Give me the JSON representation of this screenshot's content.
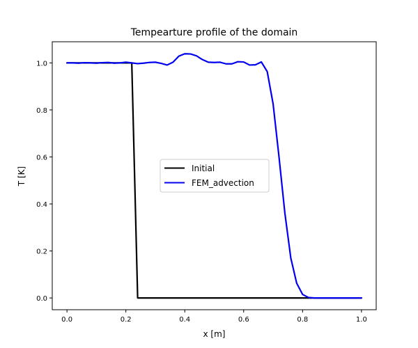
{
  "chart_data": {
    "type": "line",
    "title": "Tempearture profile of the domain",
    "xlabel": "x [m]",
    "ylabel": "T [K]",
    "xlim": [
      -0.05,
      1.05
    ],
    "ylim": [
      -0.05,
      1.09
    ],
    "xticks": [
      0.0,
      0.2,
      0.4,
      0.6,
      0.8,
      1.0
    ],
    "xtick_labels": [
      "0.0",
      "0.2",
      "0.4",
      "0.6",
      "0.8",
      "1.0"
    ],
    "yticks": [
      0.0,
      0.2,
      0.4,
      0.6,
      0.8,
      1.0
    ],
    "ytick_labels": [
      "0.0",
      "0.2",
      "0.4",
      "0.6",
      "0.8",
      "1.0"
    ],
    "grid": false,
    "legend_position": "center",
    "series": [
      {
        "name": "Initial",
        "color": "#000000",
        "x": [
          0.0,
          0.02,
          0.04,
          0.06,
          0.08,
          0.1,
          0.12,
          0.14,
          0.16,
          0.18,
          0.2,
          0.22,
          0.24,
          0.3,
          0.4,
          0.5,
          0.6,
          0.7,
          0.8,
          0.9,
          1.0
        ],
        "y": [
          1.0,
          1.0,
          1.0,
          1.0,
          1.0,
          1.0,
          1.0,
          1.0,
          1.0,
          1.0,
          1.0,
          1.0,
          0.0,
          0.0,
          0.0,
          0.0,
          0.0,
          0.0,
          0.0,
          0.0,
          0.0
        ]
      },
      {
        "name": "FEM_advection",
        "color": "#0000ee",
        "x": [
          0.0,
          0.02,
          0.04,
          0.06,
          0.08,
          0.1,
          0.12,
          0.14,
          0.16,
          0.18,
          0.2,
          0.22,
          0.24,
          0.26,
          0.28,
          0.3,
          0.32,
          0.34,
          0.36,
          0.38,
          0.4,
          0.42,
          0.44,
          0.46,
          0.48,
          0.5,
          0.52,
          0.54,
          0.56,
          0.58,
          0.6,
          0.62,
          0.64,
          0.66,
          0.68,
          0.7,
          0.72,
          0.74,
          0.76,
          0.78,
          0.8,
          0.82,
          0.84,
          0.86,
          0.88,
          0.9,
          0.92,
          0.94,
          0.96,
          0.98,
          1.0
        ],
        "y": [
          1.0,
          1.0,
          0.999,
          1.001,
          1.0,
          0.999,
          1.001,
          1.002,
          0.999,
          1.0,
          1.003,
          1.0,
          0.997,
          0.999,
          1.002,
          1.003,
          0.998,
          0.991,
          1.003,
          1.029,
          1.039,
          1.038,
          1.03,
          1.014,
          1.003,
          1.002,
          1.003,
          0.996,
          0.996,
          1.005,
          1.004,
          0.991,
          0.992,
          1.004,
          0.963,
          0.825,
          0.6,
          0.36,
          0.17,
          0.063,
          0.015,
          0.002,
          0.0,
          0.0,
          0.0,
          0.0,
          0.0,
          0.0,
          0.0,
          0.0,
          0.0
        ]
      }
    ]
  }
}
